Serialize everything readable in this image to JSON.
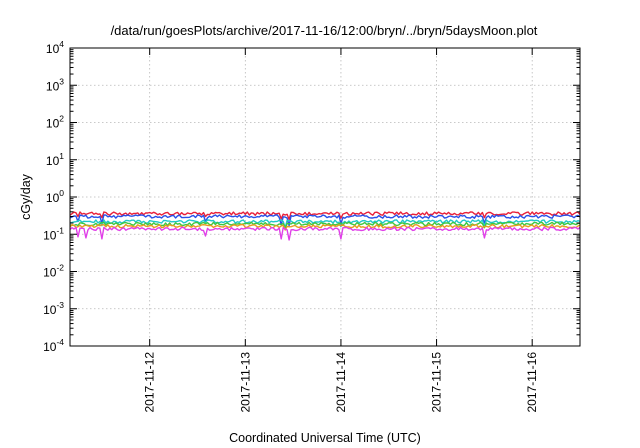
{
  "chart_data": {
    "type": "line",
    "title": "/data/run/goesPlots/archive/2017-11-16/12:00/bryn/../bryn/5daysMoon.plot",
    "xlabel": "Coordinated Universal Time (UTC)",
    "ylabel": "cGy/day",
    "yscale": "log",
    "ylim": [
      0.0001,
      10000
    ],
    "yticks": [
      {
        "base": "10",
        "exp": "-4"
      },
      {
        "base": "10",
        "exp": "-3"
      },
      {
        "base": "10",
        "exp": "-2"
      },
      {
        "base": "10",
        "exp": "-1"
      },
      {
        "base": "10",
        "exp": "0"
      },
      {
        "base": "10",
        "exp": "1"
      },
      {
        "base": "10",
        "exp": "2"
      },
      {
        "base": "10",
        "exp": "3"
      },
      {
        "base": "10",
        "exp": "4"
      }
    ],
    "xlim": [
      "2017-11-11 04:00",
      "2017-11-16 12:00"
    ],
    "xticks": [
      "2017-11-12",
      "2017-11-13",
      "2017-11-14",
      "2017-11-15",
      "2017-11-16"
    ],
    "grid": true,
    "legend": "none",
    "series": [
      {
        "color": "#e8203a",
        "level": 0.36,
        "dips": [
          [
            "2017-11-11 06:00",
            0.3
          ],
          [
            "2017-11-11 12:00",
            0.28
          ],
          [
            "2017-11-12 14:00",
            0.3
          ],
          [
            "2017-11-13 09:00",
            0.26
          ],
          [
            "2017-11-13 11:00",
            0.25
          ],
          [
            "2017-11-14 00:00",
            0.27
          ],
          [
            "2017-11-15 12:00",
            0.28
          ]
        ]
      },
      {
        "color": "#2850e8",
        "level": 0.3,
        "dips": [
          [
            "2017-11-11 06:00",
            0.22
          ],
          [
            "2017-11-11 12:00",
            0.2
          ],
          [
            "2017-11-12 14:00",
            0.22
          ],
          [
            "2017-11-13 09:00",
            0.18
          ],
          [
            "2017-11-13 11:00",
            0.17
          ],
          [
            "2017-11-14 00:00",
            0.19
          ],
          [
            "2017-11-15 12:00",
            0.2
          ]
        ]
      },
      {
        "color": "#20c8c8",
        "level": 0.22,
        "dips": [
          [
            "2017-11-11 12:00",
            0.17
          ],
          [
            "2017-11-13 10:00",
            0.15
          ],
          [
            "2017-11-14 00:00",
            0.16
          ],
          [
            "2017-11-15 12:00",
            0.16
          ]
        ]
      },
      {
        "color": "#40c840",
        "level": 0.19,
        "dips": [
          [
            "2017-11-13 10:00",
            0.14
          ],
          [
            "2017-11-15 12:00",
            0.15
          ]
        ]
      },
      {
        "color": "#e89a20",
        "level": 0.165,
        "dips": [
          [
            "2017-11-13 10:00",
            0.13
          ]
        ]
      },
      {
        "color": "#e040e8",
        "level": 0.14,
        "dips": [
          [
            "2017-11-11 06:00",
            0.085
          ],
          [
            "2017-11-11 08:00",
            0.08
          ],
          [
            "2017-11-11 12:00",
            0.075
          ],
          [
            "2017-11-12 14:00",
            0.09
          ],
          [
            "2017-11-13 09:00",
            0.075
          ],
          [
            "2017-11-13 11:00",
            0.07
          ],
          [
            "2017-11-14 00:00",
            0.075
          ],
          [
            "2017-11-15 12:00",
            0.08
          ]
        ]
      }
    ]
  }
}
